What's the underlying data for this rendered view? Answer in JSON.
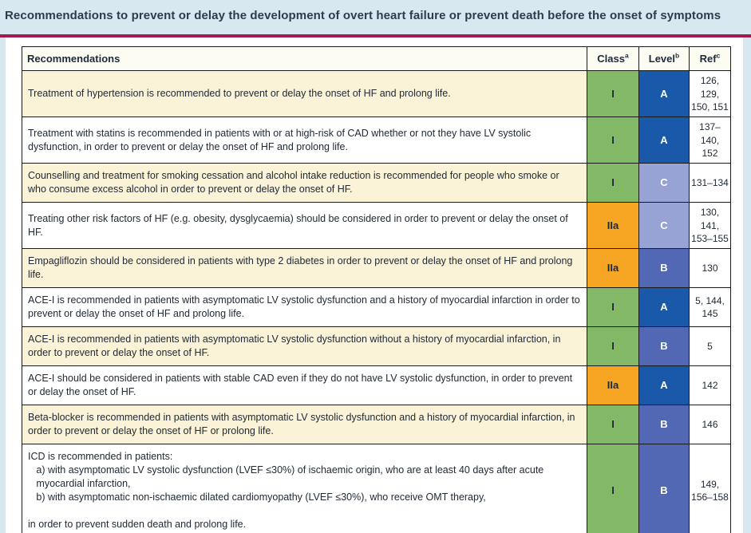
{
  "title": "Recommendations to prevent or delay the development of overt heart failure or prevent death before the onset of symptoms",
  "table": {
    "headers": {
      "recommendations": "Recommendations",
      "class": {
        "label": "Class",
        "sup": "a"
      },
      "level": {
        "label": "Level",
        "sup": "b"
      },
      "ref": {
        "label": "Ref",
        "sup": "c"
      }
    },
    "rows": [
      {
        "text": "Treatment of hypertension is recommended to prevent or delay the onset of HF and prolong life.",
        "class": "I",
        "level": "A",
        "ref": "126, 129,\n150, 151",
        "shaded": true
      },
      {
        "text": "Treatment with statins is recommended in patients with or at high-risk of CAD whether or not they have LV systolic dysfunction, in order to prevent or delay the onset of HF and prolong life.",
        "class": "I",
        "level": "A",
        "ref": "137–140,\n152",
        "shaded": false
      },
      {
        "text": "Counselling and treatment for smoking cessation and alcohol intake reduction is recommended for people who smoke or who consume excess alcohol in order to prevent or delay the onset of HF.",
        "class": "I",
        "level": "C",
        "ref": "131–134",
        "shaded": true
      },
      {
        "text": "Treating other risk factors of HF (e.g. obesity, dysglycaemia) should be considered in order to prevent or delay the onset of HF.",
        "class": "IIa",
        "level": "C",
        "ref": "130, 141,\n153–155",
        "shaded": false
      },
      {
        "text": "Empagliflozin should be considered in patients with type 2 diabetes in order to prevent or delay the onset of HF and prolong life.",
        "class": "IIa",
        "level": "B",
        "ref": "130",
        "shaded": true
      },
      {
        "text": "ACE-I is recommended in patients with asymptomatic LV systolic dysfunction and a history of myocardial infarction in order to prevent or delay the onset of HF and prolong life.",
        "class": "I",
        "level": "A",
        "ref": "5, 144,\n145",
        "shaded": false
      },
      {
        "text": "ACE-I is recommended in patients with asymptomatic LV systolic dysfunction without a history of myocardial infarction, in order to prevent or delay the onset of HF.",
        "class": "I",
        "level": "B",
        "ref": "5",
        "shaded": true
      },
      {
        "text": "ACE-I should be considered in patients with stable CAD even if they do not have LV systolic dysfunction, in order to prevent or delay the onset of HF.",
        "class": "IIa",
        "level": "A",
        "ref": "142",
        "shaded": false
      },
      {
        "text": "Beta-blocker is recommended in patients with asymptomatic LV systolic dysfunction and a history of myocardial infarction, in order to prevent or delay the onset of HF or prolong life.",
        "class": "I",
        "level": "B",
        "ref": "146",
        "shaded": true
      },
      {
        "text": "ICD is recommended in patients:\n   a) with asymptomatic LV systolic dysfunction (LVEF ≤30%) of ischaemic origin, who are at least 40 days after acute\n   myocardial infarction,\n   b) with asymptomatic non-ischaemic dilated cardiomyopathy (LVEF ≤30%), who receive OMT therapy,\n\nin order to prevent sudden death and prolong life.",
        "class": "I",
        "level": "B",
        "ref": "149,\n156–158",
        "shaded": false
      }
    ]
  },
  "colors": {
    "class_colors": {
      "I": "#83b966",
      "IIa": "#f7a623"
    },
    "level_colors": {
      "A": "#1a59aa",
      "B": "#5268b4",
      "C": "#97a3d4"
    },
    "row_shade": "#fbf3d8",
    "row_plain": "#ffffff",
    "accent_rule": "#a31a4d",
    "page_background": "#d8e8f1"
  }
}
